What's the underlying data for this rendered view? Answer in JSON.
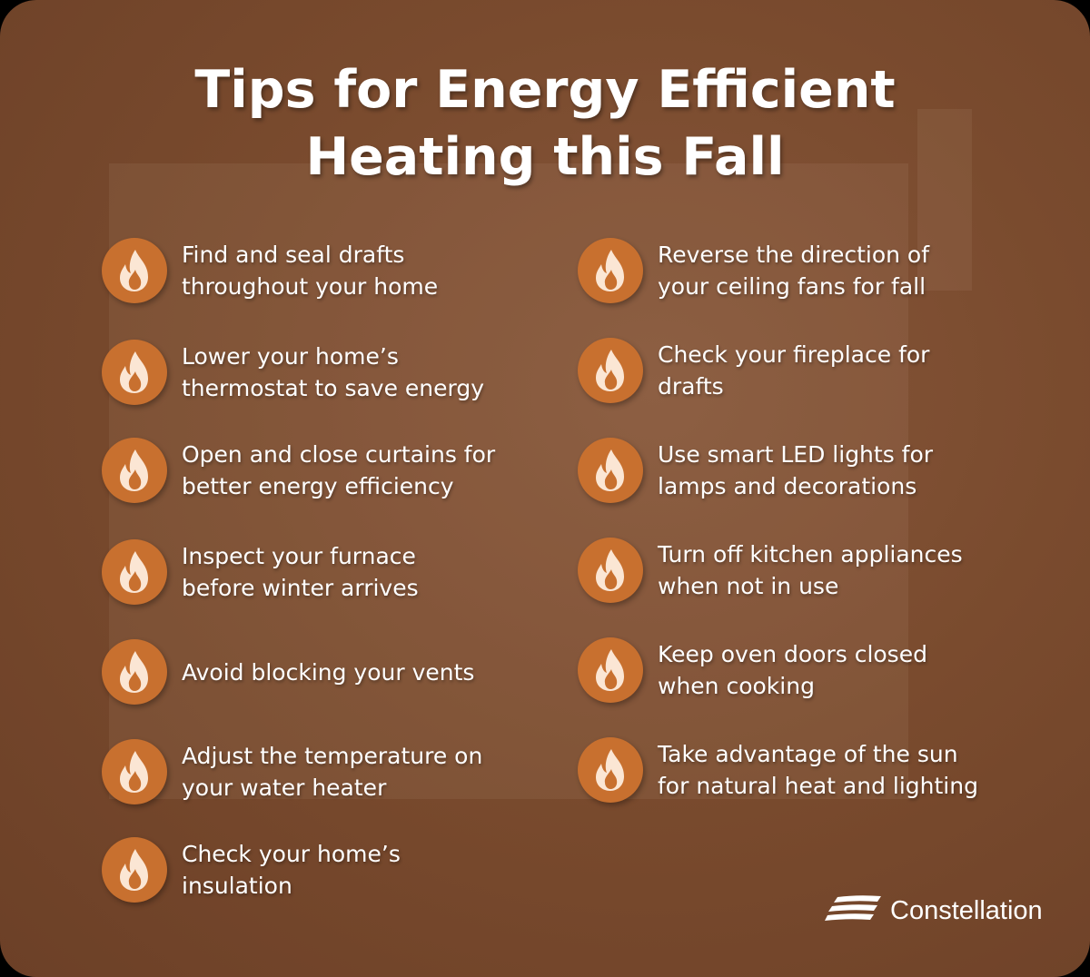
{
  "title": "Tips for Energy Efficient Heating this Fall",
  "title_lines": [
    "Tips for Energy Efficient",
    "Heating this Fall"
  ],
  "colors": {
    "background": "#7a4b2e",
    "icon_circle": "#c8702f",
    "icon_flame": "#fbe6d4",
    "text": "#ffffff"
  },
  "icon": "flame-icon",
  "left_tips": [
    "Find and seal drafts\nthroughout your home",
    "Lower your home’s\nthermostat to save energy",
    "Open and close curtains for\nbetter energy efficiency",
    "Inspect your furnace\nbefore winter arrives",
    "Avoid blocking your vents",
    "Adjust the temperature on\nyour water heater",
    "Check your home’s\ninsulation"
  ],
  "right_tips": [
    "Reverse the direction of\nyour ceiling fans for fall",
    "Check your fireplace for\ndrafts",
    "Use smart LED lights for\nlamps and decorations",
    "Turn off kitchen appliances\nwhen not in use",
    "Keep oven doors closed\nwhen cooking",
    "Take advantage of the sun\nfor natural heat and lighting"
  ],
  "logo": {
    "text": "Constellation"
  }
}
